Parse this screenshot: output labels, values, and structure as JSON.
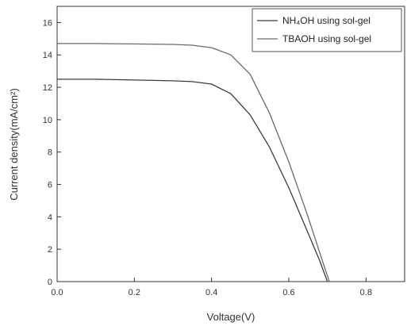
{
  "chart_data": {
    "type": "line",
    "title": "",
    "xlabel": "Voltage(V)",
    "ylabel": "Current density(mA/cm²)",
    "xlim": [
      0.0,
      0.9
    ],
    "ylim": [
      0,
      17
    ],
    "x_ticks": [
      "0.0",
      "0.2",
      "0.4",
      "0.6",
      "0.8"
    ],
    "x_tick_values": [
      0.0,
      0.2,
      0.4,
      0.6,
      0.8
    ],
    "y_ticks": [
      "0",
      "2",
      "4",
      "6",
      "8",
      "10",
      "12",
      "14",
      "16"
    ],
    "y_tick_values": [
      0,
      2,
      4,
      6,
      8,
      10,
      12,
      14,
      16
    ],
    "grid": false,
    "legend_position": "top-right",
    "series": [
      {
        "name": "NH₄OH using sol-gel",
        "color": "#3a3a3a",
        "x": [
          0.0,
          0.1,
          0.2,
          0.3,
          0.35,
          0.4,
          0.45,
          0.5,
          0.55,
          0.6,
          0.65,
          0.68,
          0.7
        ],
        "y": [
          12.5,
          12.5,
          12.45,
          12.4,
          12.35,
          12.2,
          11.6,
          10.3,
          8.3,
          5.8,
          3.0,
          1.3,
          0.0
        ]
      },
      {
        "name": "TBAOH using sol-gel",
        "color": "#6a6a6a",
        "x": [
          0.0,
          0.1,
          0.2,
          0.3,
          0.35,
          0.4,
          0.45,
          0.5,
          0.55,
          0.6,
          0.65,
          0.68,
          0.705
        ],
        "y": [
          14.7,
          14.7,
          14.68,
          14.65,
          14.6,
          14.45,
          14.0,
          12.8,
          10.4,
          7.4,
          4.0,
          1.8,
          0.0
        ]
      }
    ]
  }
}
